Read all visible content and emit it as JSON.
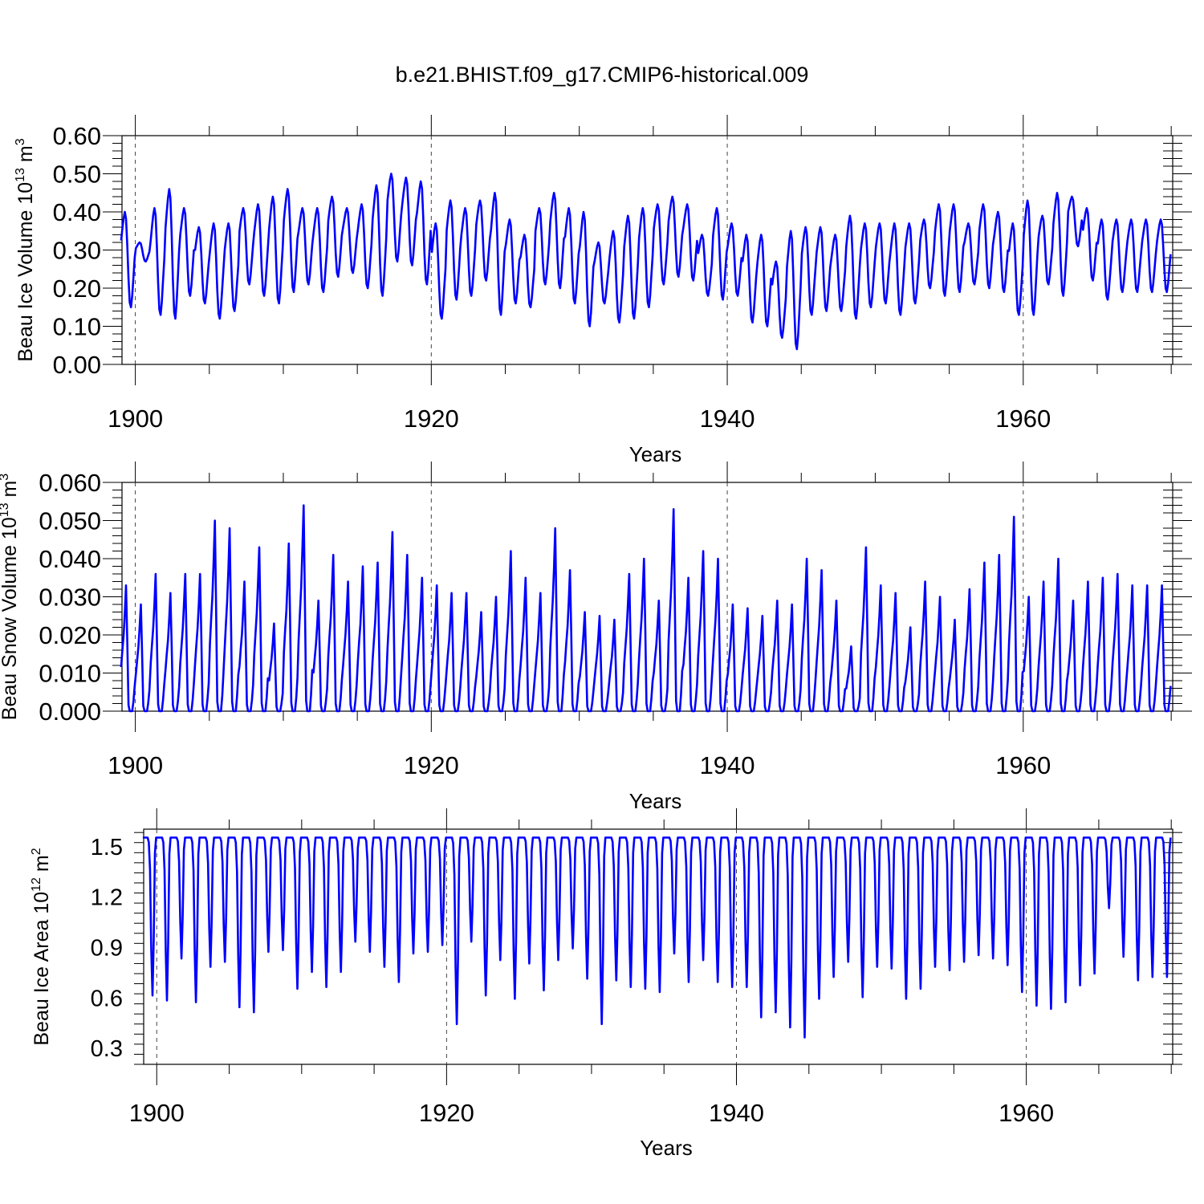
{
  "title": "b.e21.BHIST.f09_g17.CMIP6-historical.009",
  "colors": {
    "series": "#0000ff",
    "axis": "#000000",
    "refline": "#444444"
  },
  "chart_data": [
    {
      "type": "line",
      "ylabel": "Beau Ice Volume 10",
      "ylabel_exp": "13",
      "ylabel_unit": " m",
      "ylabel_unit_exp": "3",
      "xlabel": "Years",
      "xlim": [
        1899.1,
        1970.1
      ],
      "ylim": [
        0,
        0.6
      ],
      "yticks": [
        0.0,
        0.1,
        0.2,
        0.3,
        0.4,
        0.5,
        0.6
      ],
      "ytick_labels": [
        "0.00",
        "0.10",
        "0.20",
        "0.30",
        "0.40",
        "0.50",
        "0.60"
      ],
      "xticks": [
        1900,
        1920,
        1940,
        1960
      ],
      "xtick_labels": [
        "1900",
        "1920",
        "1940",
        "1960"
      ],
      "reflines": [
        1900,
        1920,
        1940,
        1960
      ],
      "series": [
        {
          "name": "Beau Ice Volume",
          "x_start": 1899.04,
          "step_months": 1,
          "annual_max": [
            0.4,
            0.32,
            0.41,
            0.46,
            0.41,
            0.36,
            0.37,
            0.37,
            0.41,
            0.42,
            0.44,
            0.46,
            0.41,
            0.41,
            0.44,
            0.41,
            0.42,
            0.47,
            0.5,
            0.49,
            0.48,
            0.37,
            0.43,
            0.41,
            0.43,
            0.45,
            0.38,
            0.34,
            0.41,
            0.45,
            0.41,
            0.4,
            0.32,
            0.35,
            0.39,
            0.41,
            0.42,
            0.44,
            0.42,
            0.34,
            0.41,
            0.37,
            0.34,
            0.34,
            0.27,
            0.35,
            0.36,
            0.36,
            0.34,
            0.39,
            0.37,
            0.37,
            0.37,
            0.37,
            0.38,
            0.42,
            0.42,
            0.37,
            0.42,
            0.4,
            0.37,
            0.43,
            0.39,
            0.45,
            0.44,
            0.41,
            0.38,
            0.38,
            0.38,
            0.38,
            0.38
          ],
          "annual_min": [
            0.15,
            0.27,
            0.13,
            0.12,
            0.18,
            0.16,
            0.12,
            0.14,
            0.21,
            0.18,
            0.16,
            0.19,
            0.21,
            0.19,
            0.23,
            0.24,
            0.2,
            0.18,
            0.27,
            0.26,
            0.21,
            0.12,
            0.17,
            0.18,
            0.22,
            0.13,
            0.16,
            0.15,
            0.21,
            0.2,
            0.16,
            0.1,
            0.16,
            0.11,
            0.12,
            0.15,
            0.21,
            0.23,
            0.22,
            0.18,
            0.17,
            0.18,
            0.11,
            0.1,
            0.07,
            0.04,
            0.13,
            0.14,
            0.14,
            0.12,
            0.15,
            0.16,
            0.13,
            0.16,
            0.2,
            0.18,
            0.19,
            0.21,
            0.2,
            0.19,
            0.13,
            0.13,
            0.21,
            0.18,
            0.31,
            0.22,
            0.17,
            0.19,
            0.19,
            0.19,
            0.19
          ]
        }
      ]
    },
    {
      "type": "line",
      "ylabel": "Beau Snow Volume 10",
      "ylabel_exp": "13",
      "ylabel_unit": " m",
      "ylabel_unit_exp": "3",
      "xlabel": "Years",
      "xlim": [
        1899.1,
        1970.1
      ],
      "ylim": [
        0,
        0.06
      ],
      "yticks": [
        0.0,
        0.01,
        0.02,
        0.03,
        0.04,
        0.05,
        0.06
      ],
      "ytick_labels": [
        "0.000",
        "0.010",
        "0.020",
        "0.030",
        "0.040",
        "0.050",
        "0.060"
      ],
      "xticks": [
        1900,
        1920,
        1940,
        1960
      ],
      "xtick_labels": [
        "1900",
        "1920",
        "1940",
        "1960"
      ],
      "reflines": [
        1900,
        1920,
        1940,
        1960
      ],
      "series": [
        {
          "name": "Beau Snow Volume",
          "x_start": 1899.04,
          "step_months": 1,
          "annual_max": [
            0.033,
            0.028,
            0.036,
            0.031,
            0.036,
            0.036,
            0.05,
            0.048,
            0.034,
            0.043,
            0.023,
            0.044,
            0.054,
            0.029,
            0.041,
            0.034,
            0.038,
            0.039,
            0.047,
            0.041,
            0.035,
            0.033,
            0.031,
            0.031,
            0.026,
            0.03,
            0.042,
            0.035,
            0.031,
            0.048,
            0.037,
            0.026,
            0.025,
            0.024,
            0.036,
            0.04,
            0.029,
            0.053,
            0.035,
            0.042,
            0.04,
            0.028,
            0.027,
            0.025,
            0.029,
            0.028,
            0.04,
            0.037,
            0.029,
            0.017,
            0.043,
            0.033,
            0.031,
            0.022,
            0.034,
            0.03,
            0.024,
            0.032,
            0.039,
            0.041,
            0.051,
            0.03,
            0.034,
            0.04,
            0.029,
            0.034,
            0.035,
            0.036,
            0.033,
            0.033,
            0.033
          ],
          "annual_min": [
            0.0,
            0.0,
            0.0,
            0.0,
            0.0,
            0.0,
            0.0,
            0.0,
            0.0,
            0.0,
            0.0,
            0.0,
            0.0,
            0.0,
            0.0,
            0.0,
            0.0,
            0.0,
            0.0,
            0.0,
            0.0,
            0.0,
            0.0,
            0.0,
            0.0,
            0.0,
            0.0,
            0.0,
            0.0,
            0.0,
            0.0,
            0.0,
            0.0,
            0.0,
            0.0,
            0.0,
            0.0,
            0.0,
            0.0,
            0.0,
            0.0,
            0.0,
            0.0,
            0.0,
            0.0,
            0.0,
            0.0,
            0.0,
            0.0,
            0.0,
            0.0,
            0.0,
            0.0,
            0.0,
            0.0,
            0.0,
            0.0,
            0.0,
            0.0,
            0.0,
            0.0,
            0.0,
            0.0,
            0.0,
            0.0,
            0.0,
            0.0,
            0.0,
            0.0,
            0.0,
            0.0
          ]
        }
      ]
    },
    {
      "type": "line",
      "ylabel": "Beau Ice Area 10",
      "ylabel_exp": "12",
      "ylabel_unit": " m",
      "ylabel_unit_exp": "2",
      "xlabel": "Years",
      "xlim": [
        1899.1,
        1970.1
      ],
      "ylim": [
        0.2,
        1.6
      ],
      "yticks": [
        0.3,
        0.6,
        0.9,
        1.2,
        1.5
      ],
      "ytick_labels": [
        "0.3",
        "0.6",
        "0.9",
        "1.2",
        "1.5"
      ],
      "xticks": [
        1900,
        1920,
        1940,
        1960
      ],
      "xtick_labels": [
        "1900",
        "1920",
        "1940",
        "1960"
      ],
      "reflines": [
        1900,
        1920,
        1940,
        1960
      ],
      "series": [
        {
          "name": "Beau Ice Area",
          "x_start": 1899.04,
          "step_months": 1,
          "annual_max": [
            1.55,
            1.55,
            1.55,
            1.55,
            1.55,
            1.55,
            1.55,
            1.55,
            1.55,
            1.55,
            1.55,
            1.55,
            1.55,
            1.55,
            1.55,
            1.55,
            1.55,
            1.55,
            1.55,
            1.55,
            1.55,
            1.55,
            1.55,
            1.55,
            1.55,
            1.55,
            1.55,
            1.55,
            1.55,
            1.55,
            1.55,
            1.55,
            1.55,
            1.55,
            1.55,
            1.55,
            1.55,
            1.55,
            1.55,
            1.55,
            1.55,
            1.55,
            1.55,
            1.55,
            1.55,
            1.55,
            1.55,
            1.55,
            1.55,
            1.55,
            1.55,
            1.55,
            1.55,
            1.55,
            1.55,
            1.55,
            1.55,
            1.55,
            1.55,
            1.55,
            1.55,
            1.55,
            1.55,
            1.55,
            1.55,
            1.55,
            1.55,
            1.55,
            1.55,
            1.55,
            1.55
          ],
          "annual_min": [
            0.61,
            0.58,
            0.83,
            0.57,
            0.78,
            0.81,
            0.54,
            0.51,
            0.87,
            0.88,
            0.65,
            0.75,
            0.66,
            0.75,
            0.93,
            0.87,
            0.78,
            0.69,
            0.86,
            0.87,
            0.91,
            0.44,
            0.93,
            0.61,
            0.82,
            0.59,
            0.8,
            0.64,
            0.82,
            0.89,
            0.71,
            0.44,
            0.7,
            0.66,
            0.65,
            0.63,
            0.86,
            0.69,
            0.82,
            0.69,
            0.66,
            0.66,
            0.48,
            0.51,
            0.42,
            0.36,
            0.59,
            0.72,
            0.81,
            0.6,
            0.78,
            0.77,
            0.59,
            0.65,
            0.78,
            0.76,
            0.81,
            0.85,
            0.83,
            0.79,
            0.63,
            0.55,
            0.53,
            0.57,
            0.67,
            0.74,
            1.13,
            0.84,
            0.7,
            0.72,
            0.72
          ]
        }
      ]
    }
  ]
}
